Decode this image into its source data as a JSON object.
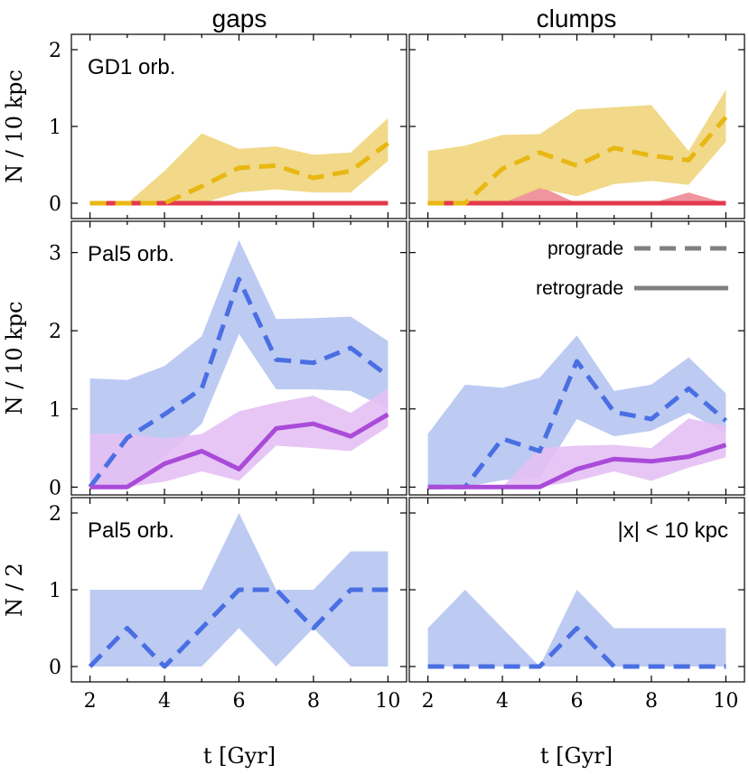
{
  "chart_data": {
    "type": "line",
    "column_titles": [
      "gaps",
      "clumps"
    ],
    "xlabel": "t [Gyr]",
    "x_ticks": [
      2,
      4,
      6,
      8,
      10
    ],
    "legend": [
      {
        "label": "prograde",
        "style": "dashed",
        "color": "#808080"
      },
      {
        "label": "retrograde",
        "style": "solid",
        "color": "#808080"
      }
    ],
    "colors": {
      "gd1_prograde": "#e8b712",
      "gd1_band": "#efd57c",
      "gd1_retrograde": "#e2394d",
      "gd1_retro_band": "#ee8a92",
      "pal5_prograde": "#4a6fe3",
      "pal5_band": "#b6c5f2",
      "pal5_retrograde": "#a94bd8",
      "pal5_retro_band": "#e4c0f4"
    },
    "rows": [
      {
        "ylabel": "N / 10 kpc",
        "ylim": [
          -0.2,
          2.2
        ],
        "yticks": [
          0,
          1,
          2
        ],
        "panels": [
          {
            "annotation": "GD1 orb.",
            "series": [
              {
                "name": "retrograde",
                "color": "#e2394d",
                "dash": false,
                "x": [
                  2,
                  3,
                  4,
                  5,
                  6,
                  7,
                  8,
                  9,
                  10
                ],
                "y": [
                  0,
                  0,
                  0,
                  0,
                  0,
                  0,
                  0,
                  0,
                  0
                ]
              },
              {
                "name": "prograde",
                "color": "#e8b712",
                "dash": true,
                "band_color": "#efd57c",
                "x": [
                  2,
                  3,
                  4,
                  5,
                  6,
                  7,
                  8,
                  9,
                  10
                ],
                "y": [
                  0,
                  0,
                  0,
                  0.22,
                  0.46,
                  0.49,
                  0.33,
                  0.42,
                  0.78
                ],
                "lo": [
                  0,
                  0,
                  0,
                  0,
                  0.14,
                  0.18,
                  0.14,
                  0.14,
                  0.55
                ],
                "hi": [
                  0,
                  0,
                  0.42,
                  0.91,
                  0.71,
                  0.74,
                  0.63,
                  0.66,
                  1.11
                ]
              }
            ]
          },
          {
            "annotation": "",
            "series": [
              {
                "name": "retrograde",
                "color": "#e2394d",
                "dash": false,
                "band_color": "#ee8a92",
                "x": [
                  2,
                  3,
                  4,
                  5,
                  6,
                  7,
                  8,
                  9,
                  10
                ],
                "y": [
                  0,
                  0,
                  0,
                  0,
                  0,
                  0,
                  0,
                  0,
                  0
                ],
                "lo": [
                  0,
                  0,
                  0,
                  0,
                  0,
                  0,
                  0,
                  0,
                  0
                ],
                "hi": [
                  0,
                  0,
                  0,
                  0.22,
                  0,
                  0,
                  0,
                  0.14,
                  0
                ]
              },
              {
                "name": "prograde",
                "color": "#e8b712",
                "dash": true,
                "band_color": "#efd57c",
                "x": [
                  2,
                  3,
                  4,
                  5,
                  6,
                  7,
                  8,
                  9,
                  10
                ],
                "y": [
                  0,
                  0,
                  0.45,
                  0.66,
                  0.49,
                  0.72,
                  0.62,
                  0.56,
                  1.12
                ],
                "lo": [
                  0,
                  0,
                  0,
                  0.19,
                  0.09,
                  0.25,
                  0.29,
                  0.24,
                  0.8
                ],
                "hi": [
                  0.68,
                  0.75,
                  0.89,
                  0.9,
                  1.22,
                  1.25,
                  1.28,
                  0.68,
                  1.48
                ]
              }
            ]
          }
        ]
      },
      {
        "ylabel": "N / 10 kpc",
        "ylim": [
          -0.1,
          3.4
        ],
        "yticks": [
          0,
          1,
          2,
          3
        ],
        "panels": [
          {
            "annotation": "Pal5 orb.",
            "series": [
              {
                "name": "prograde",
                "color": "#4a6fe3",
                "dash": true,
                "band_color": "#b6c5f2",
                "x": [
                  2,
                  3,
                  4,
                  5,
                  6,
                  7,
                  8,
                  9,
                  10
                ],
                "y": [
                  0,
                  0.63,
                  0.93,
                  1.26,
                  2.66,
                  1.63,
                  1.59,
                  1.78,
                  1.42
                ],
                "lo": [
                  0,
                  0,
                  0.38,
                  0.81,
                  1.96,
                  1.25,
                  1.25,
                  1.23,
                  1.0
                ],
                "hi": [
                  1.39,
                  1.37,
                  1.55,
                  1.93,
                  3.16,
                  2.15,
                  2.16,
                  2.18,
                  1.87
                ]
              },
              {
                "name": "retrograde",
                "color": "#a94bd8",
                "dash": false,
                "band_color": "#e4c0f4",
                "x": [
                  2,
                  3,
                  4,
                  5,
                  6,
                  7,
                  8,
                  9,
                  10
                ],
                "y": [
                  0,
                  0,
                  0.3,
                  0.46,
                  0.23,
                  0.75,
                  0.81,
                  0.65,
                  0.93
                ],
                "lo": [
                  0,
                  0,
                  0.07,
                  0.2,
                  0.08,
                  0.53,
                  0.5,
                  0.46,
                  0.77
                ],
                "hi": [
                  0.68,
                  0.68,
                  0.62,
                  0.68,
                  0.97,
                  1.08,
                  1.17,
                  0.95,
                  1.26
                ]
              }
            ]
          },
          {
            "annotation": "",
            "series": [
              {
                "name": "prograde",
                "color": "#4a6fe3",
                "dash": true,
                "band_color": "#b6c5f2",
                "x": [
                  2,
                  3,
                  4,
                  5,
                  6,
                  7,
                  8,
                  9,
                  10
                ],
                "y": [
                  0,
                  0,
                  0.62,
                  0.46,
                  1.61,
                  0.96,
                  0.87,
                  1.26,
                  0.85
                ],
                "lo": [
                  0,
                  0,
                  0.09,
                  0.11,
                  0.87,
                  0.65,
                  0.72,
                  0.95,
                  0.68
                ],
                "hi": [
                  0.68,
                  1.31,
                  1.27,
                  1.4,
                  1.94,
                  1.23,
                  1.31,
                  1.66,
                  1.2
                ]
              },
              {
                "name": "retrograde",
                "color": "#a94bd8",
                "dash": false,
                "band_color": "#e4c0f4",
                "x": [
                  2,
                  3,
                  4,
                  5,
                  6,
                  7,
                  8,
                  9,
                  10
                ],
                "y": [
                  0,
                  0,
                  0,
                  0,
                  0.23,
                  0.36,
                  0.33,
                  0.39,
                  0.54
                ],
                "lo": [
                  0,
                  0,
                  0,
                  0,
                  0.08,
                  0.2,
                  0.08,
                  0.25,
                  0.38
                ],
                "hi": [
                  0,
                  0,
                  0,
                  0.5,
                  0.53,
                  0.54,
                  0.5,
                  0.88,
                  0.78
                ]
              }
            ]
          }
        ]
      },
      {
        "ylabel": "N / 2",
        "ylim": [
          -0.2,
          2.2
        ],
        "yticks": [
          0,
          1,
          2
        ],
        "panels": [
          {
            "annotation": "Pal5 orb.",
            "series": [
              {
                "name": "prograde",
                "color": "#4a6fe3",
                "dash": true,
                "band_color": "#b6c5f2",
                "x": [
                  2,
                  3,
                  4,
                  5,
                  6,
                  7,
                  8,
                  9,
                  10
                ],
                "y": [
                  0,
                  0.5,
                  0,
                  0.5,
                  1,
                  1,
                  0.5,
                  1,
                  1
                ],
                "lo": [
                  0,
                  0,
                  0,
                  0,
                  0.5,
                  0,
                  0.5,
                  0,
                  0
                ],
                "hi": [
                  1,
                  1,
                  1,
                  1,
                  2,
                  1,
                  1,
                  1.5,
                  1.5
                ]
              }
            ]
          },
          {
            "annotation": "|x| < 10 kpc",
            "series": [
              {
                "name": "prograde",
                "color": "#4a6fe3",
                "dash": true,
                "band_color": "#b6c5f2",
                "x": [
                  2,
                  3,
                  4,
                  5,
                  6,
                  7,
                  8,
                  9,
                  10
                ],
                "y": [
                  0,
                  0,
                  0,
                  0,
                  0.5,
                  0,
                  0,
                  0,
                  0
                ],
                "lo": [
                  0,
                  0,
                  0,
                  0,
                  0,
                  0,
                  0,
                  0,
                  0
                ],
                "hi": [
                  0.5,
                  1,
                  0.5,
                  0,
                  1,
                  0.5,
                  0.5,
                  0.5,
                  0.5
                ]
              }
            ]
          }
        ]
      }
    ]
  }
}
